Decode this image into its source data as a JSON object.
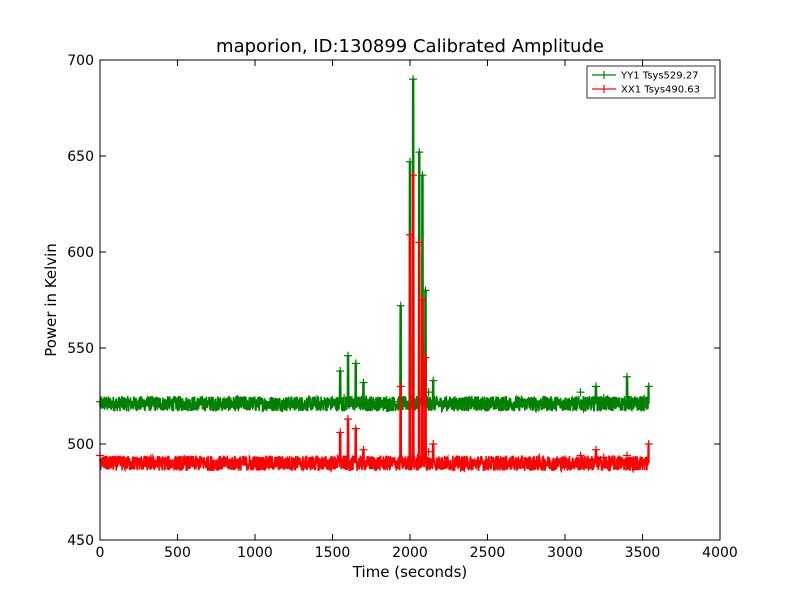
{
  "chart_data": {
    "type": "line",
    "title": "maporion, ID:130899 Calibrated Amplitude",
    "xlabel": "Time (seconds)",
    "ylabel": "Power in Kelvin",
    "xlim": [
      0,
      4000
    ],
    "ylim": [
      450,
      700
    ],
    "xticks": [
      0,
      500,
      1000,
      1500,
      2000,
      2500,
      3000,
      3500,
      4000
    ],
    "yticks": [
      450,
      500,
      550,
      600,
      650,
      700
    ],
    "grid": false,
    "legend_position": "top-right",
    "series": [
      {
        "name": "YY1 Tsys529.27",
        "color": "#008000",
        "marker": "+",
        "baseline": 521,
        "x": [
          0,
          150,
          300,
          450,
          600,
          750,
          900,
          1050,
          1200,
          1350,
          1450,
          1500,
          1550,
          1575,
          1600,
          1625,
          1650,
          1700,
          1750,
          1800,
          1850,
          1900,
          1940,
          1970,
          2000,
          2020,
          2040,
          2060,
          2080,
          2100,
          2120,
          2150,
          2200,
          2300,
          2400,
          2500,
          2600,
          2700,
          2800,
          2900,
          3000,
          3100,
          3150,
          3200,
          3250,
          3300,
          3350,
          3400,
          3450,
          3500,
          3540
        ],
        "y": [
          522,
          521,
          522,
          520,
          521,
          520,
          521,
          521,
          520,
          521,
          522,
          523,
          538,
          524,
          546,
          523,
          542,
          532,
          523,
          522,
          523,
          522,
          572,
          522,
          647,
          690,
          522,
          652,
          640,
          580,
          527,
          533,
          522,
          522,
          521,
          521,
          521,
          520,
          521,
          521,
          522,
          527,
          522,
          530,
          524,
          521,
          522,
          535,
          521,
          521,
          530
        ]
      },
      {
        "name": "XX1 Tsys490.63",
        "color": "#ff0000",
        "marker": "+",
        "baseline": 490,
        "x": [
          0,
          150,
          300,
          450,
          600,
          750,
          900,
          1050,
          1200,
          1350,
          1450,
          1500,
          1550,
          1575,
          1600,
          1625,
          1650,
          1700,
          1750,
          1800,
          1850,
          1900,
          1940,
          1970,
          2000,
          2020,
          2040,
          2060,
          2080,
          2100,
          2120,
          2150,
          2200,
          2300,
          2400,
          2500,
          2600,
          2700,
          2800,
          2900,
          3000,
          3100,
          3150,
          3200,
          3250,
          3300,
          3350,
          3400,
          3450,
          3500,
          3540
        ],
        "y": [
          494,
          490,
          491,
          489,
          490,
          489,
          490,
          491,
          490,
          490,
          490,
          491,
          506,
          492,
          513,
          491,
          508,
          497,
          491,
          490,
          491,
          491,
          530,
          491,
          609,
          640,
          491,
          605,
          575,
          545,
          496,
          500,
          491,
          491,
          490,
          490,
          491,
          490,
          491,
          491,
          492,
          494,
          492,
          497,
          493,
          491,
          492,
          494,
          491,
          491,
          500
        ]
      }
    ]
  }
}
